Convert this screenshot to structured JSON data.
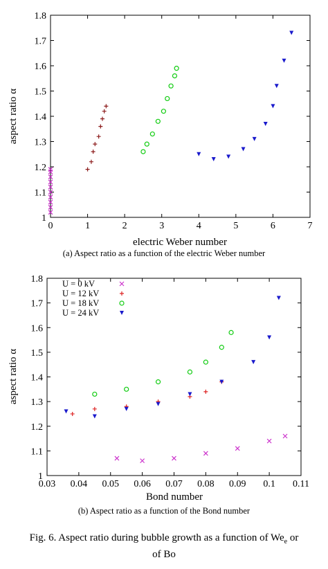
{
  "chart_data": [
    {
      "type": "scatter",
      "xlabel": "electric Weber number",
      "ylabel": "aspect ratio α",
      "xlim": [
        0,
        7
      ],
      "ylim": [
        1,
        1.8
      ],
      "xticks": [
        "0",
        "1",
        "2",
        "3",
        "4",
        "5",
        "6",
        "7"
      ],
      "yticks": [
        "1",
        "1.1",
        "1.2",
        "1.3",
        "1.4",
        "1.5",
        "1.6",
        "1.7",
        "1.8"
      ],
      "caption": "(a) Aspect ratio as a function of the electric Weber number",
      "series": [
        {
          "color": "#cc33cc",
          "marker": "x",
          "points": [
            [
              0,
              1.02
            ],
            [
              0,
              1.04
            ],
            [
              0,
              1.06
            ],
            [
              0,
              1.08
            ],
            [
              0,
              1.1
            ],
            [
              0,
              1.12
            ],
            [
              0,
              1.14
            ],
            [
              0,
              1.16
            ],
            [
              0,
              1.18
            ],
            [
              0,
              1.19
            ]
          ]
        },
        {
          "color": "#8b1a1a",
          "marker": "+",
          "points": [
            [
              1.0,
              1.19
            ],
            [
              1.1,
              1.22
            ],
            [
              1.15,
              1.26
            ],
            [
              1.2,
              1.29
            ],
            [
              1.3,
              1.32
            ],
            [
              1.35,
              1.36
            ],
            [
              1.4,
              1.39
            ],
            [
              1.45,
              1.42
            ],
            [
              1.5,
              1.44
            ]
          ]
        },
        {
          "color": "#11cc11",
          "marker": "o",
          "points": [
            [
              2.5,
              1.26
            ],
            [
              2.6,
              1.29
            ],
            [
              2.75,
              1.33
            ],
            [
              2.9,
              1.38
            ],
            [
              3.05,
              1.42
            ],
            [
              3.15,
              1.47
            ],
            [
              3.25,
              1.52
            ],
            [
              3.35,
              1.56
            ],
            [
              3.4,
              1.59
            ]
          ]
        },
        {
          "color": "#1a1acc",
          "marker": "v",
          "points": [
            [
              4.0,
              1.25
            ],
            [
              4.4,
              1.23
            ],
            [
              4.8,
              1.24
            ],
            [
              5.2,
              1.27
            ],
            [
              5.5,
              1.31
            ],
            [
              5.8,
              1.37
            ],
            [
              6.0,
              1.44
            ],
            [
              6.1,
              1.52
            ],
            [
              6.3,
              1.62
            ],
            [
              6.5,
              1.73
            ]
          ]
        }
      ]
    },
    {
      "type": "scatter",
      "xlabel": "Bond number",
      "ylabel": "aspect ratio α",
      "xlim": [
        0.03,
        0.11
      ],
      "ylim": [
        1,
        1.8
      ],
      "xticks": [
        "0.03",
        "0.04",
        "0.05",
        "0.06",
        "0.07",
        "0.08",
        "0.09",
        "0.1",
        "0.11"
      ],
      "yticks": [
        "1",
        "1.1",
        "1.2",
        "1.3",
        "1.4",
        "1.5",
        "1.6",
        "1.7",
        "1.8"
      ],
      "caption": "(b) Aspect ratio as a function of the Bond number",
      "series": [
        {
          "name": "U = 0 kV",
          "color": "#cc33cc",
          "marker": "x",
          "points": [
            [
              0.052,
              1.07
            ],
            [
              0.06,
              1.06
            ],
            [
              0.07,
              1.07
            ],
            [
              0.08,
              1.09
            ],
            [
              0.09,
              1.11
            ],
            [
              0.1,
              1.14
            ],
            [
              0.105,
              1.16
            ]
          ]
        },
        {
          "name": "U = 12 kV",
          "color": "#dd2222",
          "marker": "+",
          "points": [
            [
              0.038,
              1.25
            ],
            [
              0.045,
              1.27
            ],
            [
              0.055,
              1.28
            ],
            [
              0.065,
              1.3
            ],
            [
              0.075,
              1.32
            ],
            [
              0.08,
              1.34
            ],
            [
              0.085,
              1.38
            ]
          ]
        },
        {
          "name": "U = 18 kV",
          "color": "#11cc11",
          "marker": "o",
          "points": [
            [
              0.045,
              1.33
            ],
            [
              0.055,
              1.35
            ],
            [
              0.065,
              1.38
            ],
            [
              0.075,
              1.42
            ],
            [
              0.08,
              1.46
            ],
            [
              0.085,
              1.52
            ],
            [
              0.088,
              1.58
            ]
          ]
        },
        {
          "name": "U = 24 kV",
          "color": "#1a1acc",
          "marker": "v",
          "points": [
            [
              0.036,
              1.26
            ],
            [
              0.045,
              1.24
            ],
            [
              0.055,
              1.27
            ],
            [
              0.065,
              1.29
            ],
            [
              0.075,
              1.33
            ],
            [
              0.085,
              1.38
            ],
            [
              0.095,
              1.46
            ],
            [
              0.1,
              1.56
            ],
            [
              0.103,
              1.72
            ]
          ]
        }
      ]
    }
  ],
  "figure_caption": "Fig. 6.  Aspect ratio during bubble growth as a function of We",
  "figure_caption_sub": "e",
  "figure_caption_end": " or",
  "figure_caption_line2": "of Bo"
}
